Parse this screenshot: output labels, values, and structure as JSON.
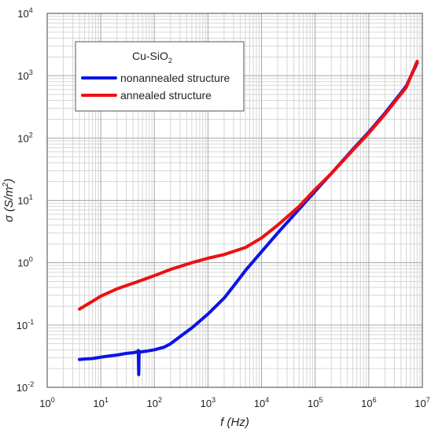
{
  "chart_data": {
    "type": "line",
    "x_scale": "log",
    "y_scale": "log",
    "xlim": [
      1,
      10000000
    ],
    "ylim": [
      0.01,
      10000
    ],
    "grid": true,
    "grid_minor": true,
    "legend_position": "top-left",
    "x_ticks": [
      {
        "base": "10",
        "exp": "0"
      },
      {
        "base": "10",
        "exp": "1"
      },
      {
        "base": "10",
        "exp": "2"
      },
      {
        "base": "10",
        "exp": "3"
      },
      {
        "base": "10",
        "exp": "4"
      },
      {
        "base": "10",
        "exp": "5"
      },
      {
        "base": "10",
        "exp": "6"
      },
      {
        "base": "10",
        "exp": "7"
      }
    ],
    "y_ticks": [
      {
        "base": "10",
        "exp": "-2"
      },
      {
        "base": "10",
        "exp": "-1"
      },
      {
        "base": "10",
        "exp": "0"
      },
      {
        "base": "10",
        "exp": "1"
      },
      {
        "base": "10",
        "exp": "2"
      },
      {
        "base": "10",
        "exp": "3"
      },
      {
        "base": "10",
        "exp": "4"
      }
    ],
    "xlabel": "f (Hz)",
    "ylabel_main": "σ (S/m",
    "ylabel_sup": "2",
    "ylabel_end": ")",
    "legend_title_main": "Cu-SiO",
    "legend_title_sub": "2",
    "series": [
      {
        "name": "nonannealed structure",
        "color": "#0a14e6",
        "points": [
          [
            4,
            0.028
          ],
          [
            5,
            0.0285
          ],
          [
            7,
            0.029
          ],
          [
            10,
            0.0305
          ],
          [
            15,
            0.032
          ],
          [
            20,
            0.033
          ],
          [
            30,
            0.035
          ],
          [
            40,
            0.036
          ],
          [
            48,
            0.037
          ],
          [
            50,
            0.039
          ],
          [
            51,
            0.016
          ],
          [
            52,
            0.038
          ],
          [
            55,
            0.037
          ],
          [
            70,
            0.038
          ],
          [
            100,
            0.04
          ],
          [
            150,
            0.044
          ],
          [
            200,
            0.05
          ],
          [
            300,
            0.065
          ],
          [
            500,
            0.09
          ],
          [
            1000,
            0.15
          ],
          [
            2000,
            0.27
          ],
          [
            3000,
            0.42
          ],
          [
            5000,
            0.75
          ],
          [
            10000,
            1.5
          ],
          [
            20000,
            3.0
          ],
          [
            50000,
            7.2
          ],
          [
            100000,
            14
          ],
          [
            200000,
            27
          ],
          [
            500000,
            65
          ],
          [
            1000000,
            125
          ],
          [
            2000000,
            250
          ],
          [
            5000000,
            680
          ],
          [
            8000000,
            1600
          ]
        ]
      },
      {
        "name": "annealed structure",
        "color": "#ee1010",
        "points": [
          [
            4,
            0.18
          ],
          [
            7,
            0.24
          ],
          [
            10,
            0.29
          ],
          [
            20,
            0.38
          ],
          [
            50,
            0.5
          ],
          [
            100,
            0.62
          ],
          [
            200,
            0.78
          ],
          [
            500,
            1.0
          ],
          [
            1000,
            1.18
          ],
          [
            2000,
            1.35
          ],
          [
            5000,
            1.75
          ],
          [
            10000,
            2.5
          ],
          [
            20000,
            4.0
          ],
          [
            50000,
            8.0
          ],
          [
            100000,
            15
          ],
          [
            200000,
            27
          ],
          [
            500000,
            63
          ],
          [
            1000000,
            120
          ],
          [
            2000000,
            240
          ],
          [
            5000000,
            650
          ],
          [
            8000000,
            1700
          ]
        ]
      }
    ]
  }
}
